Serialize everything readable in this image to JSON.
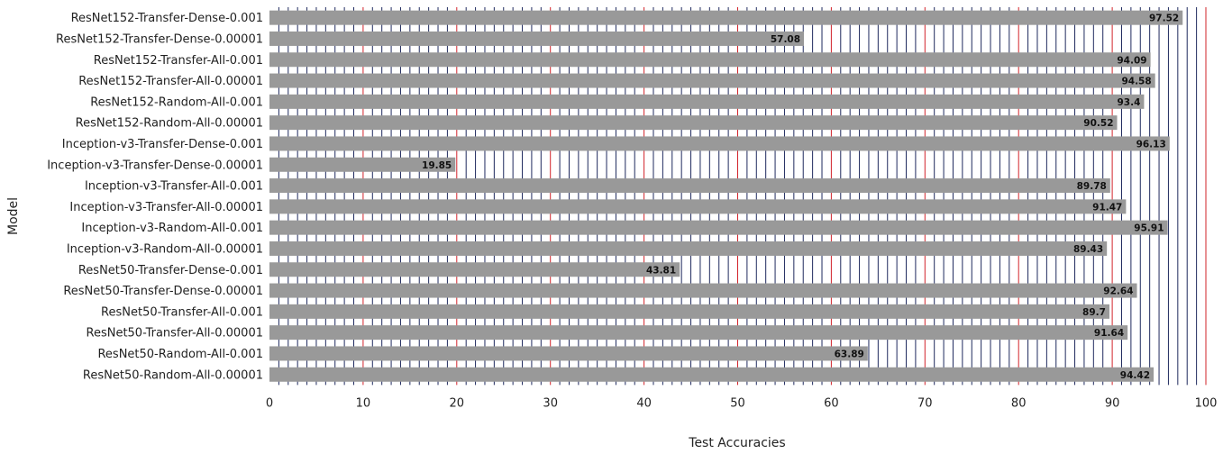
{
  "chart_data": {
    "type": "bar",
    "orientation": "horizontal",
    "title": "",
    "xlabel": "Test Accuracies",
    "ylabel": "Model",
    "xlim": [
      0,
      100
    ],
    "xticks": [
      "0",
      "10",
      "20",
      "30",
      "40",
      "50",
      "60",
      "70",
      "80",
      "90",
      "100"
    ],
    "grid": true,
    "colors": {
      "bar": "#999999",
      "minor_grid": "#1f2a5e",
      "major_grid": "#d2232a",
      "text": "#222222"
    },
    "categories": [
      "ResNet152-Transfer-Dense-0.001",
      "ResNet152-Transfer-Dense-0.00001",
      "ResNet152-Transfer-All-0.001",
      "ResNet152-Transfer-All-0.00001",
      "ResNet152-Random-All-0.001",
      "ResNet152-Random-All-0.00001",
      "Inception-v3-Transfer-Dense-0.001",
      "Inception-v3-Transfer-Dense-0.00001",
      "Inception-v3-Transfer-All-0.001",
      "Inception-v3-Transfer-All-0.00001",
      "Inception-v3-Random-All-0.001",
      "Inception-v3-Random-All-0.00001",
      "ResNet50-Transfer-Dense-0.001",
      "ResNet50-Transfer-Dense-0.00001",
      "ResNet50-Transfer-All-0.001",
      "ResNet50-Transfer-All-0.00001",
      "ResNet50-Random-All-0.001",
      "ResNet50-Random-All-0.00001"
    ],
    "values": [
      97.52,
      57.08,
      94.09,
      94.58,
      93.4,
      90.52,
      96.13,
      19.85,
      89.78,
      91.47,
      95.91,
      89.43,
      43.81,
      92.64,
      89.7,
      91.64,
      63.89,
      94.42
    ],
    "value_labels": [
      "97.52",
      "57.08",
      "94.09",
      "94.58",
      "93.4",
      "90.52",
      "96.13",
      "19.85",
      "89.78",
      "91.47",
      "95.91",
      "89.43",
      "43.81",
      "92.64",
      "89.7",
      "91.64",
      "63.89",
      "94.42"
    ]
  }
}
